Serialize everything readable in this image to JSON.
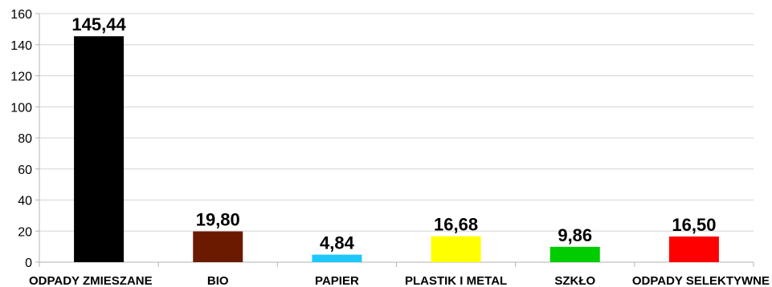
{
  "chart_data": {
    "type": "bar",
    "title": "",
    "xlabel": "",
    "ylabel": "",
    "ylim": [
      0,
      160
    ],
    "yticks": [
      0,
      20,
      40,
      60,
      80,
      100,
      120,
      140,
      160
    ],
    "ytick_labels": [
      "0",
      "20",
      "40",
      "60",
      "80",
      "100",
      "120",
      "140",
      "160"
    ],
    "grid": true,
    "legend": "none",
    "categories": [
      "ODPADY ZMIESZANE",
      "BIO",
      "PAPIER",
      "PLASTIK I METAL",
      "SZKŁO",
      "ODPADY SELEKTYWNE"
    ],
    "values": [
      145.44,
      19.8,
      4.84,
      16.68,
      9.86,
      16.5
    ],
    "value_labels": [
      "145,44",
      "19,80",
      "4,84",
      "16,68",
      "9,86",
      "16,50"
    ],
    "colors": [
      "#000000",
      "#6b1a00",
      "#1ec8ff",
      "#ffff00",
      "#00cc00",
      "#ff0000"
    ]
  }
}
